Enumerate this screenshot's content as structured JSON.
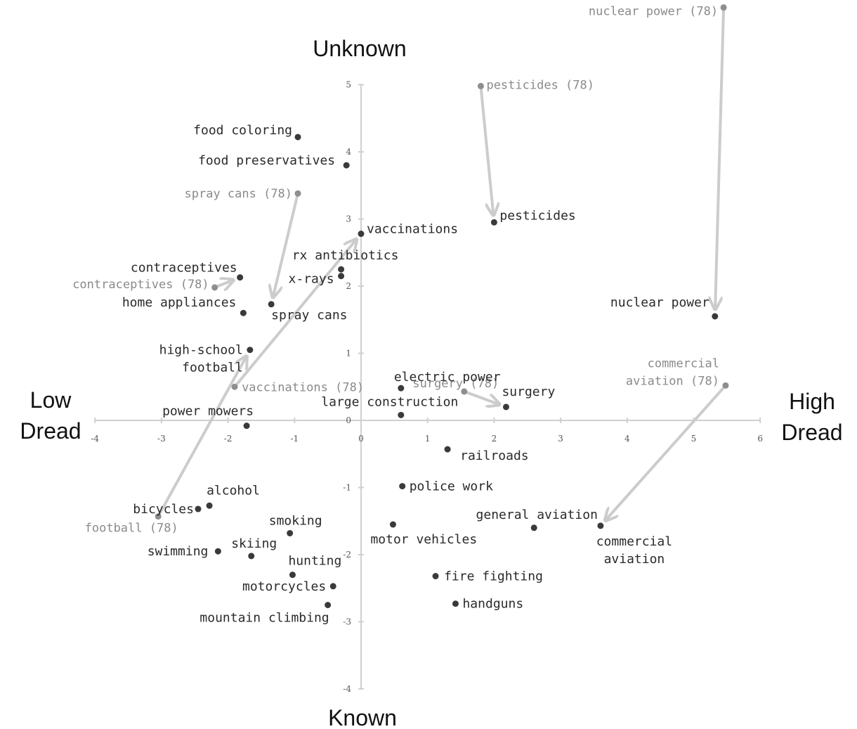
{
  "chart_data": {
    "type": "scatter",
    "title": "",
    "xlabel_left": "Low\nDread",
    "xlabel_right": "High\nDread",
    "ylabel_top": "Unknown",
    "ylabel_bottom": "Known",
    "xlim": [
      -4,
      6
    ],
    "ylim": [
      -4,
      5
    ],
    "x_ticks": [
      -4,
      -3,
      -2,
      -1,
      0,
      1,
      2,
      3,
      4,
      5,
      6
    ],
    "y_ticks": [
      -4,
      -3,
      -2,
      -1,
      0,
      1,
      2,
      3,
      4,
      5
    ],
    "grid": false,
    "points": [
      {
        "label": "food coloring",
        "x": -0.95,
        "y": 4.22,
        "label_lines": [
          "food coloring"
        ],
        "anchor": "end"
      },
      {
        "label": "food preservatives",
        "x": -0.22,
        "y": 3.8,
        "label_lines": [
          "food preservatives"
        ],
        "anchor": "end"
      },
      {
        "label": "vaccinations",
        "x": 0.0,
        "y": 2.78,
        "label_lines": [
          "vaccinations"
        ],
        "anchor": "start"
      },
      {
        "label": "pesticides",
        "x": 2.0,
        "y": 2.95,
        "label_lines": [
          "pesticides"
        ],
        "anchor": "start"
      },
      {
        "label": "rx antibiotics",
        "x": -0.3,
        "y": 2.25,
        "label_lines": [
          "rx antibiotics"
        ],
        "anchor": "middle"
      },
      {
        "label": "x-rays",
        "x": -0.3,
        "y": 2.15,
        "label_lines": [
          "x-rays"
        ],
        "anchor": "end"
      },
      {
        "label": "contraceptives",
        "x": -1.82,
        "y": 2.13,
        "label_lines": [
          "contraceptives"
        ],
        "anchor": "end"
      },
      {
        "label": "home appliances",
        "x": -1.77,
        "y": 1.6,
        "label_lines": [
          "home appliances"
        ],
        "anchor": "end"
      },
      {
        "label": "spray cans",
        "x": -1.35,
        "y": 1.73,
        "label_lines": [
          "spray cans"
        ],
        "anchor": "start"
      },
      {
        "label": "nuclear power",
        "x": 5.32,
        "y": 1.55,
        "label_lines": [
          "nuclear power"
        ],
        "anchor": "end"
      },
      {
        "label": "high-school football",
        "x": -1.67,
        "y": 1.05,
        "label_lines": [
          "high-school",
          "football"
        ],
        "anchor": "end"
      },
      {
        "label": "electric power",
        "x": 0.6,
        "y": 0.48,
        "label_lines": [
          "electric power"
        ],
        "anchor": "start"
      },
      {
        "label": "surgery",
        "x": 2.18,
        "y": 0.2,
        "label_lines": [
          "surgery"
        ],
        "anchor": "start"
      },
      {
        "label": "large construction",
        "x": 0.6,
        "y": 0.08,
        "label_lines": [
          "large construction"
        ],
        "anchor": "middle"
      },
      {
        "label": "power mowers",
        "x": -1.72,
        "y": -0.08,
        "label_lines": [
          "power mowers"
        ],
        "anchor": "end"
      },
      {
        "label": "railroads",
        "x": 1.3,
        "y": -0.43,
        "label_lines": [
          "railroads"
        ],
        "anchor": "start"
      },
      {
        "label": "police work",
        "x": 0.62,
        "y": -0.98,
        "label_lines": [
          "police work"
        ],
        "anchor": "start"
      },
      {
        "label": "alcohol",
        "x": -2.28,
        "y": -1.27,
        "label_lines": [
          "alcohol"
        ],
        "anchor": "start"
      },
      {
        "label": "bicycles",
        "x": -2.45,
        "y": -1.32,
        "label_lines": [
          "bicycles"
        ],
        "anchor": "end"
      },
      {
        "label": "motor vehicles",
        "x": 0.48,
        "y": -1.55,
        "label_lines": [
          "motor vehicles"
        ],
        "anchor": "start"
      },
      {
        "label": "general aviation",
        "x": 2.6,
        "y": -1.6,
        "label_lines": [
          "general aviation"
        ],
        "anchor": "middle"
      },
      {
        "label": "commercial aviation",
        "x": 3.6,
        "y": -1.57,
        "label_lines": [
          "commercial",
          "aviation"
        ],
        "anchor": "middle"
      },
      {
        "label": "smoking",
        "x": -1.07,
        "y": -1.68,
        "label_lines": [
          "smoking"
        ],
        "anchor": "middle"
      },
      {
        "label": "swimming",
        "x": -2.15,
        "y": -1.95,
        "label_lines": [
          "swimming"
        ],
        "anchor": "end"
      },
      {
        "label": "skiing",
        "x": -1.65,
        "y": -2.02,
        "label_lines": [
          "skiing"
        ],
        "anchor": "middle"
      },
      {
        "label": "hunting",
        "x": -1.03,
        "y": -2.3,
        "label_lines": [
          "hunting"
        ],
        "anchor": "start"
      },
      {
        "label": "fire fighting",
        "x": 1.12,
        "y": -2.32,
        "label_lines": [
          "fire fighting"
        ],
        "anchor": "start"
      },
      {
        "label": "motorcycles",
        "x": -0.42,
        "y": -2.47,
        "label_lines": [
          "motorcycles"
        ],
        "anchor": "end"
      },
      {
        "label": "handguns",
        "x": 1.42,
        "y": -2.73,
        "label_lines": [
          "handguns"
        ],
        "anchor": "start"
      },
      {
        "label": "mountain climbing",
        "x": -0.5,
        "y": -2.75,
        "label_lines": [
          "mountain climbing"
        ],
        "anchor": "end"
      }
    ],
    "earlier_points": [
      {
        "label": "nuclear power (78)",
        "x": 5.45,
        "y": 6.15,
        "label_lines": [
          "nuclear power (78)"
        ],
        "anchor": "end",
        "moved_to": "nuclear power"
      },
      {
        "label": "pesticides (78)",
        "x": 1.8,
        "y": 4.98,
        "label_lines": [
          "pesticides (78)"
        ],
        "anchor": "start",
        "moved_to": "pesticides"
      },
      {
        "label": "spray cans (78)",
        "x": -0.95,
        "y": 3.38,
        "label_lines": [
          "spray cans (78)"
        ],
        "anchor": "end",
        "moved_to": "spray cans"
      },
      {
        "label": "contraceptives (78)",
        "x": -2.2,
        "y": 1.98,
        "label_lines": [
          "contraceptives (78)"
        ],
        "anchor": "end",
        "moved_to": "contraceptives"
      },
      {
        "label": "commercial aviation (78)",
        "x": 5.48,
        "y": 0.52,
        "label_lines": [
          "commercial",
          "aviation (78)"
        ],
        "anchor": "end",
        "moved_to": "commercial aviation"
      },
      {
        "label": "vaccinations (78)",
        "x": -1.9,
        "y": 0.5,
        "label_lines": [
          "vaccinations (78)"
        ],
        "anchor": "start",
        "moved_to": "vaccinations"
      },
      {
        "label": "surgery (78)",
        "x": 1.55,
        "y": 0.43,
        "label_lines": [
          "surgery (78)"
        ],
        "anchor": "middle",
        "moved_to": "surgery"
      },
      {
        "label": "football (78)",
        "x": -3.05,
        "y": -1.43,
        "label_lines": [
          "football (78)"
        ],
        "anchor": "middle",
        "moved_to": "high-school football"
      }
    ]
  }
}
